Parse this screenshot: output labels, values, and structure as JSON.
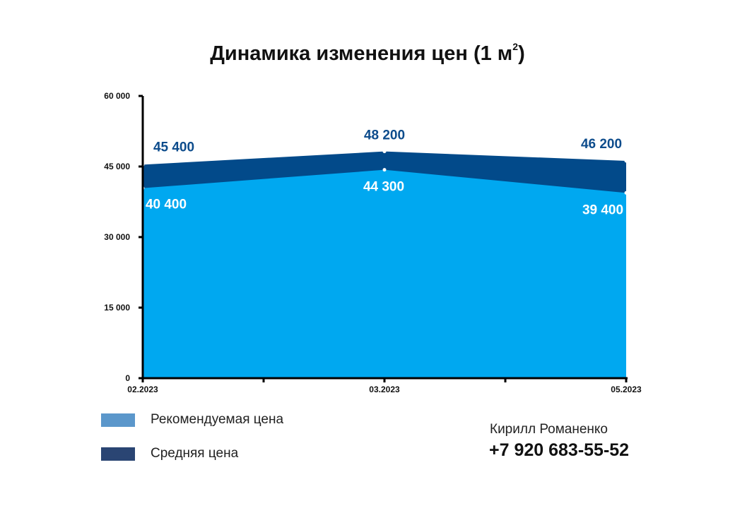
{
  "colors": {
    "recommended_area": "#00a8f0",
    "average_area": "#024a8a",
    "average_label": "#0d4c8c",
    "recommended_label": "#ffffff",
    "legend_recommended": "#5b97cb",
    "legend_average": "#2a4573"
  },
  "chart_data": {
    "type": "area",
    "title": "Динамика изменения цен (1 м",
    "title_superscript": "2",
    "title_close": ")",
    "categories": [
      "02.2023",
      "03.2023",
      "05.2023"
    ],
    "series": [
      {
        "name": "Рекомендуемая цена",
        "values": [
          40400,
          44300,
          39400
        ],
        "labels": [
          "40 400",
          "44 300",
          "39 400"
        ]
      },
      {
        "name": "Средняя цена",
        "values": [
          45400,
          48200,
          46200
        ],
        "labels": [
          "45 400",
          "48 200",
          "46 200"
        ]
      }
    ],
    "ylim": [
      0,
      60000
    ],
    "yticks": [
      0,
      15000,
      30000,
      45000,
      60000
    ],
    "ytick_labels": [
      "0",
      "15 000",
      "30 000",
      "45 000",
      "60 000"
    ],
    "xlabel": "",
    "ylabel": "",
    "grid": false,
    "legend_position": "bottom-left"
  },
  "contact": {
    "name": "Кирилл Романенко",
    "phone": "+7 920 683-55-52"
  }
}
